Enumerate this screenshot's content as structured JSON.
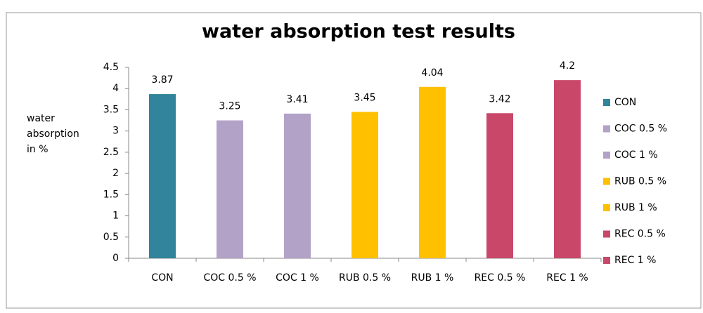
{
  "chart_data": {
    "type": "bar",
    "title": "water absorption test results",
    "y_label": "water absorption in %",
    "categories": [
      "CON",
      "COC 0.5 %",
      "COC 1 %",
      "RUB 0.5 %",
      "RUB 1 %",
      "REC 0.5 %",
      "REC 1 %"
    ],
    "values": [
      3.87,
      3.25,
      3.41,
      3.45,
      4.04,
      3.42,
      4.2
    ],
    "colors": [
      "#31849b",
      "#b3a2c7",
      "#b3a2c7",
      "#ffc000",
      "#ffc000",
      "#c9486a",
      "#c9486a"
    ],
    "ylim": [
      0,
      4.5
    ],
    "yticks": [
      0,
      0.5,
      1,
      1.5,
      2,
      2.5,
      3,
      3.5,
      4,
      4.5
    ],
    "grid": false,
    "legend": "right"
  }
}
